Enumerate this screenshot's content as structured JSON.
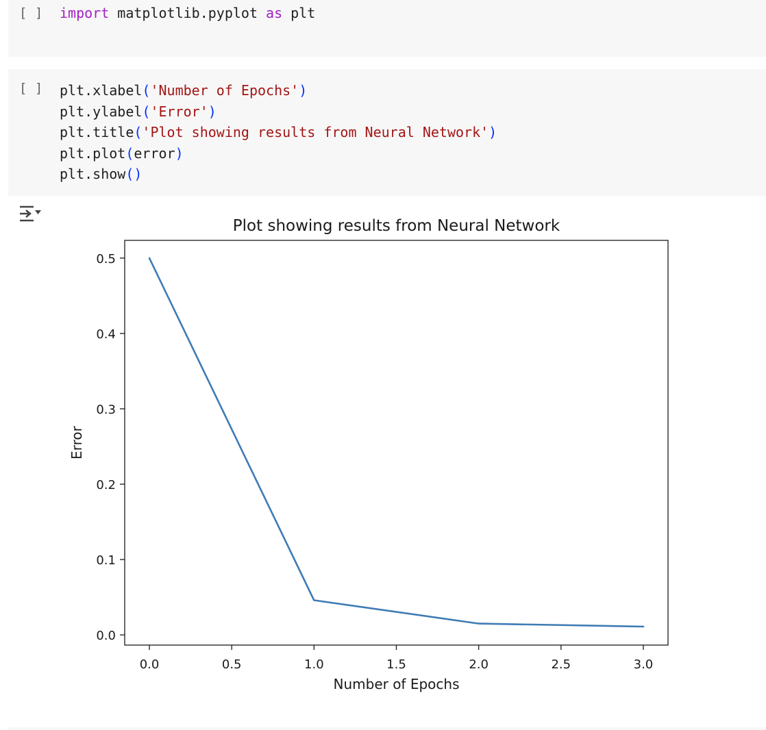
{
  "cells": [
    {
      "run_bracket": "[ ]",
      "lines": [
        [
          {
            "t": "import",
            "c": "kw"
          },
          {
            "t": " matplotlib.pyplot ",
            "c": ""
          },
          {
            "t": "as",
            "c": "kw"
          },
          {
            "t": " plt",
            "c": ""
          }
        ]
      ]
    },
    {
      "run_bracket": "[ ]",
      "lines": [
        [
          {
            "t": "plt.xlabel",
            "c": ""
          },
          {
            "t": "(",
            "c": "pn"
          },
          {
            "t": "'Number of Epochs'",
            "c": "st"
          },
          {
            "t": ")",
            "c": "pn"
          }
        ],
        [
          {
            "t": "plt.ylabel",
            "c": ""
          },
          {
            "t": "(",
            "c": "pn"
          },
          {
            "t": "'Error'",
            "c": "st"
          },
          {
            "t": ")",
            "c": "pn"
          }
        ],
        [
          {
            "t": "plt.title",
            "c": ""
          },
          {
            "t": "(",
            "c": "pn"
          },
          {
            "t": "'Plot showing results from Neural Network'",
            "c": "st"
          },
          {
            "t": ")",
            "c": "pn"
          }
        ],
        [
          {
            "t": "plt.plot",
            "c": ""
          },
          {
            "t": "(",
            "c": "pn"
          },
          {
            "t": "error",
            "c": ""
          },
          {
            "t": ")",
            "c": "pn"
          }
        ],
        [
          {
            "t": "plt.show",
            "c": ""
          },
          {
            "t": "()",
            "c": "pn"
          }
        ]
      ]
    }
  ],
  "output_icon": "output-toggle-icon",
  "colors": {
    "keyword": "#a21fc4",
    "string": "#a31515",
    "paren": "#0431fa",
    "line": "#3e7bb5",
    "cell_bg": "#f7f7f7"
  },
  "chart_data": {
    "type": "line",
    "title": "Plot showing results from Neural Network",
    "xlabel": "Number of Epochs",
    "ylabel": "Error",
    "x": [
      0,
      1,
      2,
      3
    ],
    "y": [
      0.5,
      0.046,
      0.015,
      0.011
    ],
    "xlim": [
      -0.15,
      3.15
    ],
    "ylim": [
      -0.0135,
      0.5235
    ],
    "xticks": [
      0.0,
      0.5,
      1.0,
      1.5,
      2.0,
      2.5,
      3.0
    ],
    "xtick_labels": [
      "0.0",
      "0.5",
      "1.0",
      "1.5",
      "2.0",
      "2.5",
      "3.0"
    ],
    "yticks": [
      0.0,
      0.1,
      0.2,
      0.3,
      0.4,
      0.5
    ],
    "ytick_labels": [
      "0.0",
      "0.1",
      "0.2",
      "0.3",
      "0.4",
      "0.5"
    ],
    "grid": false
  }
}
